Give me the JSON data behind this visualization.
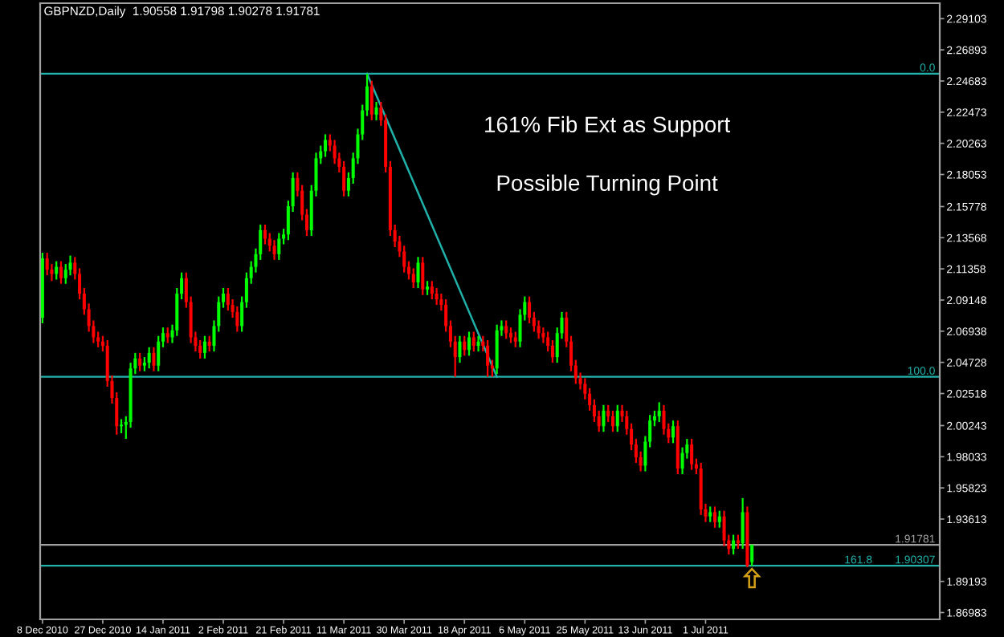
{
  "chart_data": {
    "type": "candlestick",
    "title": "GBPNZD,Daily  1.90558 1.91798 1.90278 1.91781",
    "annotations": [
      "161% Fib Ext as Support",
      "Possible Turning Point",
      {
        "text": "0.0",
        "y": 2.252
      },
      {
        "text": "100.0",
        "y": 2.037
      },
      {
        "text": "1.90307",
        "y": 1.90307
      },
      {
        "text": "161.8",
        "y": 1.90307
      }
    ],
    "categories": [
      "8 Dec 2010",
      null,
      null,
      null,
      null,
      null,
      null,
      null,
      null,
      null,
      null,
      null,
      null,
      "27 Dec 2010",
      null,
      null,
      null,
      null,
      null,
      null,
      null,
      null,
      null,
      null,
      null,
      null,
      "14 Jan 2011",
      null,
      null,
      null,
      null,
      null,
      null,
      null,
      null,
      null,
      null,
      null,
      null,
      "2 Feb 2011",
      null,
      null,
      null,
      null,
      null,
      null,
      null,
      null,
      null,
      null,
      null,
      null,
      "21 Feb 2011",
      null,
      null,
      null,
      null,
      null,
      null,
      null,
      null,
      null,
      null,
      null,
      null,
      "11 Mar 2011",
      null,
      null,
      null,
      null,
      null,
      null,
      null,
      null,
      null,
      null,
      null,
      null,
      "30 Mar 2011",
      null,
      null,
      null,
      null,
      null,
      null,
      null,
      null,
      null,
      null,
      null,
      null,
      "18 Apr 2011",
      null,
      null,
      null,
      null,
      null,
      null,
      null,
      null,
      null,
      null,
      null,
      null,
      "6 May 2011",
      null,
      null,
      null,
      null,
      null,
      null,
      null,
      null,
      null,
      null,
      null,
      null,
      "25 May 2011",
      null,
      null,
      null,
      null,
      null,
      null,
      null,
      null,
      null,
      null,
      null,
      null,
      "13 Jun 2011",
      null,
      null,
      null,
      null,
      null,
      null,
      null,
      null,
      null,
      null,
      null,
      null,
      "1 Jul 2011",
      null,
      null,
      null,
      null,
      null,
      null,
      null,
      null,
      null,
      null,
      null,
      null,
      null,
      null,
      null,
      null,
      null,
      null,
      null,
      null,
      null,
      null,
      null,
      null,
      null,
      null,
      null,
      null,
      null,
      null,
      null,
      null,
      null,
      null,
      null,
      null,
      null,
      null,
      null,
      null,
      null,
      null,
      null,
      null,
      null,
      null,
      null,
      null,
      null,
      null
    ],
    "ohlc": [
      [
        2.079,
        2.125,
        2.075,
        2.121
      ],
      [
        2.121,
        2.125,
        2.109,
        2.113
      ],
      [
        2.113,
        2.117,
        2.105,
        2.11
      ],
      [
        2.11,
        2.119,
        2.106,
        2.115
      ],
      [
        2.115,
        2.119,
        2.103,
        2.107
      ],
      [
        2.107,
        2.117,
        2.103,
        2.113
      ],
      [
        2.113,
        2.123,
        2.109,
        2.118
      ],
      [
        2.118,
        2.122,
        2.106,
        2.11
      ],
      [
        2.11,
        2.114,
        2.092,
        2.096
      ],
      [
        2.096,
        2.1,
        2.081,
        2.085
      ],
      [
        2.085,
        2.089,
        2.069,
        2.073
      ],
      [
        2.073,
        2.077,
        2.061,
        2.065
      ],
      [
        2.065,
        2.069,
        2.058,
        2.062
      ],
      [
        2.062,
        2.066,
        2.055,
        2.059
      ],
      [
        2.059,
        2.063,
        2.03,
        2.034
      ],
      [
        2.034,
        2.038,
        2.018,
        2.022
      ],
      [
        2.022,
        2.026,
        1.996,
        2.002
      ],
      [
        2.002,
        2.007,
        1.997,
        2.003
      ],
      [
        2.003,
        2.009,
        1.993,
        2.005
      ],
      [
        2.005,
        2.047,
        2.001,
        2.043
      ],
      [
        2.043,
        2.054,
        2.039,
        2.05
      ],
      [
        2.05,
        2.054,
        2.041,
        2.045
      ],
      [
        2.045,
        2.051,
        2.041,
        2.047
      ],
      [
        2.047,
        2.058,
        2.043,
        2.054
      ],
      [
        2.054,
        2.058,
        2.041,
        2.045
      ],
      [
        2.045,
        2.066,
        2.041,
        2.062
      ],
      [
        2.062,
        2.072,
        2.058,
        2.068
      ],
      [
        2.068,
        2.072,
        2.061,
        2.065
      ],
      [
        2.065,
        2.074,
        2.061,
        2.07
      ],
      [
        2.07,
        2.1,
        2.066,
        2.096
      ],
      [
        2.096,
        2.111,
        2.092,
        2.107
      ],
      [
        2.107,
        2.111,
        2.086,
        2.09
      ],
      [
        2.09,
        2.094,
        2.061,
        2.065
      ],
      [
        2.065,
        2.069,
        2.055,
        2.059
      ],
      [
        2.059,
        2.063,
        2.05,
        2.054
      ],
      [
        2.054,
        2.066,
        2.05,
        2.062
      ],
      [
        2.062,
        2.066,
        2.055,
        2.059
      ],
      [
        2.059,
        2.077,
        2.055,
        2.073
      ],
      [
        2.073,
        2.094,
        2.069,
        2.09
      ],
      [
        2.09,
        2.1,
        2.086,
        2.096
      ],
      [
        2.096,
        2.1,
        2.084,
        2.088
      ],
      [
        2.088,
        2.092,
        2.079,
        2.083
      ],
      [
        2.083,
        2.087,
        2.069,
        2.073
      ],
      [
        2.073,
        2.094,
        2.069,
        2.09
      ],
      [
        2.09,
        2.111,
        2.086,
        2.107
      ],
      [
        2.107,
        2.119,
        2.103,
        2.115
      ],
      [
        2.115,
        2.128,
        2.111,
        2.124
      ],
      [
        2.124,
        2.145,
        2.12,
        2.141
      ],
      [
        2.141,
        2.145,
        2.131,
        2.135
      ],
      [
        2.135,
        2.139,
        2.126,
        2.13
      ],
      [
        2.13,
        2.134,
        2.12,
        2.124
      ],
      [
        2.124,
        2.139,
        2.12,
        2.135
      ],
      [
        2.135,
        2.142,
        2.131,
        2.138
      ],
      [
        2.138,
        2.162,
        2.134,
        2.158
      ],
      [
        2.158,
        2.182,
        2.154,
        2.178
      ],
      [
        2.178,
        2.182,
        2.165,
        2.169
      ],
      [
        2.169,
        2.173,
        2.148,
        2.152
      ],
      [
        2.152,
        2.156,
        2.137,
        2.141
      ],
      [
        2.141,
        2.173,
        2.137,
        2.169
      ],
      [
        2.169,
        2.196,
        2.165,
        2.192
      ],
      [
        2.192,
        2.201,
        2.188,
        2.197
      ],
      [
        2.197,
        2.209,
        2.193,
        2.205
      ],
      [
        2.205,
        2.209,
        2.197,
        2.201
      ],
      [
        2.201,
        2.205,
        2.188,
        2.192
      ],
      [
        2.192,
        2.196,
        2.182,
        2.186
      ],
      [
        2.186,
        2.19,
        2.165,
        2.169
      ],
      [
        2.169,
        2.182,
        2.165,
        2.178
      ],
      [
        2.178,
        2.196,
        2.174,
        2.192
      ],
      [
        2.192,
        2.213,
        2.188,
        2.209
      ],
      [
        2.209,
        2.23,
        2.205,
        2.226
      ],
      [
        2.226,
        2.252,
        2.222,
        2.243
      ],
      [
        2.243,
        2.247,
        2.219,
        2.223
      ],
      [
        2.223,
        2.232,
        2.219,
        2.228
      ],
      [
        2.228,
        2.232,
        2.215,
        2.219
      ],
      [
        2.219,
        2.223,
        2.182,
        2.186
      ],
      [
        2.186,
        2.19,
        2.137,
        2.141
      ],
      [
        2.141,
        2.145,
        2.129,
        2.133
      ],
      [
        2.133,
        2.137,
        2.122,
        2.126
      ],
      [
        2.126,
        2.13,
        2.111,
        2.115
      ],
      [
        2.115,
        2.119,
        2.106,
        2.11
      ],
      [
        2.11,
        2.114,
        2.1,
        2.104
      ],
      [
        2.104,
        2.122,
        2.1,
        2.118
      ],
      [
        2.118,
        2.122,
        2.095,
        2.099
      ],
      [
        2.099,
        2.105,
        2.095,
        2.101
      ],
      [
        2.101,
        2.105,
        2.092,
        2.096
      ],
      [
        2.096,
        2.1,
        2.088,
        2.092
      ],
      [
        2.092,
        2.096,
        2.084,
        2.088
      ],
      [
        2.088,
        2.092,
        2.069,
        2.073
      ],
      [
        2.073,
        2.077,
        2.058,
        2.062
      ],
      [
        2.062,
        2.066,
        2.037,
        2.051
      ],
      [
        2.051,
        2.066,
        2.047,
        2.062
      ],
      [
        2.062,
        2.066,
        2.052,
        2.056
      ],
      [
        2.056,
        2.069,
        2.052,
        2.065
      ],
      [
        2.065,
        2.069,
        2.055,
        2.059
      ],
      [
        2.059,
        2.066,
        2.055,
        2.062
      ],
      [
        2.062,
        2.066,
        2.055,
        2.059
      ],
      [
        2.059,
        2.063,
        2.037,
        2.045
      ],
      [
        2.045,
        2.049,
        2.037,
        2.043
      ],
      [
        2.043,
        2.074,
        2.039,
        2.07
      ],
      [
        2.07,
        2.077,
        2.066,
        2.073
      ],
      [
        2.073,
        2.077,
        2.064,
        2.068
      ],
      [
        2.068,
        2.072,
        2.061,
        2.065
      ],
      [
        2.065,
        2.069,
        2.058,
        2.062
      ],
      [
        2.062,
        2.085,
        2.058,
        2.081
      ],
      [
        2.081,
        2.094,
        2.077,
        2.09
      ],
      [
        2.09,
        2.094,
        2.075,
        2.079
      ],
      [
        2.079,
        2.083,
        2.069,
        2.073
      ],
      [
        2.073,
        2.077,
        2.064,
        2.068
      ],
      [
        2.068,
        2.072,
        2.061,
        2.065
      ],
      [
        2.065,
        2.069,
        2.055,
        2.059
      ],
      [
        2.059,
        2.063,
        2.047,
        2.051
      ],
      [
        2.051,
        2.072,
        2.047,
        2.068
      ],
      [
        2.068,
        2.083,
        2.064,
        2.079
      ],
      [
        2.079,
        2.083,
        2.058,
        2.062
      ],
      [
        2.062,
        2.066,
        2.041,
        2.045
      ],
      [
        2.045,
        2.049,
        2.032,
        2.036
      ],
      [
        2.036,
        2.04,
        2.028,
        2.032
      ],
      [
        2.032,
        2.036,
        2.021,
        2.025
      ],
      [
        2.025,
        2.029,
        2.013,
        2.017
      ],
      [
        2.017,
        2.021,
        2.005,
        2.009
      ],
      [
        2.009,
        2.013,
        1.998,
        2.002
      ],
      [
        2.002,
        2.017,
        1.998,
        2.013
      ],
      [
        2.013,
        2.017,
        2.005,
        2.009
      ],
      [
        2.009,
        2.013,
        1.998,
        2.002
      ],
      [
        2.002,
        2.017,
        1.998,
        2.013
      ],
      [
        2.013,
        2.017,
        2.005,
        2.009
      ],
      [
        2.009,
        2.013,
        1.996,
        2.0
      ],
      [
        2.0,
        2.004,
        1.985,
        1.989
      ],
      [
        1.989,
        1.993,
        1.976,
        1.98
      ],
      [
        1.98,
        1.984,
        1.97,
        1.974
      ],
      [
        1.974,
        1.995,
        1.97,
        1.991
      ],
      [
        1.991,
        2.01,
        1.987,
        2.006
      ],
      [
        2.006,
        2.013,
        2.002,
        2.009
      ],
      [
        2.009,
        2.019,
        2.005,
        2.013
      ],
      [
        2.013,
        2.017,
        1.996,
        2.0
      ],
      [
        2.0,
        2.004,
        1.99,
        1.994
      ],
      [
        1.994,
        2.006,
        1.99,
        2.002
      ],
      [
        2.002,
        2.006,
        1.968,
        1.972
      ],
      [
        1.972,
        1.987,
        1.968,
        1.983
      ],
      [
        1.983,
        1.993,
        1.979,
        1.989
      ],
      [
        1.989,
        1.993,
        1.971,
        1.975
      ],
      [
        1.975,
        1.979,
        1.968,
        1.972
      ],
      [
        1.972,
        1.976,
        1.939,
        1.943
      ],
      [
        1.943,
        1.947,
        1.934,
        1.938
      ],
      [
        1.938,
        1.945,
        1.934,
        1.941
      ],
      [
        1.941,
        1.945,
        1.93,
        1.934
      ],
      [
        1.934,
        1.942,
        1.93,
        1.938
      ],
      [
        1.938,
        1.942,
        1.917,
        1.921
      ],
      [
        1.921,
        1.925,
        1.911,
        1.915
      ],
      [
        1.915,
        1.925,
        1.911,
        1.921
      ],
      [
        1.921,
        1.925,
        1.915,
        1.919
      ],
      [
        1.919,
        1.951,
        1.915,
        1.941
      ],
      [
        1.941,
        1.945,
        1.902,
        1.903
      ],
      [
        1.90558,
        1.91798,
        1.90278,
        1.91781
      ],
      null,
      null,
      null,
      null,
      null,
      null,
      null,
      null,
      null,
      null,
      null,
      null,
      null,
      null,
      null,
      null,
      null,
      null,
      null,
      null,
      null,
      null,
      null,
      null,
      null,
      null,
      null,
      null,
      null,
      null,
      null,
      null,
      null,
      null,
      null,
      null,
      null,
      null,
      null,
      null
    ],
    "colors": [
      "#00ff00",
      "#ff0000",
      "#ff0000",
      "#00ff00",
      "#ff0000",
      "#00ff00",
      "#00ff00",
      "#ff0000",
      "#ff0000",
      "#ff0000",
      "#ff0000",
      "#ff0000",
      "#ff0000",
      "#ff0000",
      "#ff0000",
      "#ff0000",
      "#ff0000",
      "#00ff00",
      "#00ff00",
      "#00ff00",
      "#00ff00",
      "#ff0000",
      "#00ff00",
      "#00ff00",
      "#ff0000",
      "#00ff00",
      "#00ff00",
      "#ff0000",
      "#00ff00",
      "#00ff00",
      "#00ff00",
      "#ff0000",
      "#ff0000",
      "#ff0000",
      "#ff0000",
      "#00ff00",
      "#ff0000",
      "#00ff00",
      "#00ff00",
      "#00ff00",
      "#ff0000",
      "#ff0000",
      "#ff0000",
      "#00ff00",
      "#00ff00",
      "#00ff00",
      "#00ff00",
      "#00ff00",
      "#ff0000",
      "#ff0000",
      "#ff0000",
      "#00ff00",
      "#00ff00",
      "#00ff00",
      "#00ff00",
      "#ff0000",
      "#ff0000",
      "#ff0000",
      "#00ff00",
      "#00ff00",
      "#00ff00",
      "#00ff00",
      "#ff0000",
      "#ff0000",
      "#ff0000",
      "#ff0000",
      "#00ff00",
      "#00ff00",
      "#00ff00",
      "#00ff00",
      "#00ff00",
      "#ff0000",
      "#00ff00",
      "#ff0000",
      "#ff0000",
      "#ff0000",
      "#ff0000",
      "#ff0000",
      "#ff0000",
      "#ff0000",
      "#ff0000",
      "#00ff00",
      "#ff0000",
      "#00ff00",
      "#ff0000",
      "#ff0000",
      "#ff0000",
      "#ff0000",
      "#ff0000",
      "#ff0000",
      "#00ff00",
      "#ff0000",
      "#00ff00",
      "#ff0000",
      "#00ff00",
      "#ff0000",
      "#ff0000",
      "#ff0000",
      "#00ff00",
      "#00ff00",
      "#ff0000",
      "#ff0000",
      "#ff0000",
      "#00ff00",
      "#00ff00",
      "#ff0000",
      "#ff0000",
      "#ff0000",
      "#ff0000",
      "#ff0000",
      "#ff0000",
      "#00ff00",
      "#00ff00",
      "#ff0000",
      "#ff0000",
      "#ff0000",
      "#ff0000",
      "#ff0000",
      "#ff0000",
      "#ff0000",
      "#ff0000",
      "#00ff00",
      "#ff0000",
      "#ff0000",
      "#00ff00",
      "#ff0000",
      "#ff0000",
      "#ff0000",
      "#ff0000",
      "#ff0000",
      "#00ff00",
      "#00ff00",
      "#00ff00",
      "#00ff00",
      "#ff0000",
      "#ff0000",
      "#00ff00",
      "#ff0000",
      "#00ff00",
      "#00ff00",
      "#ff0000",
      "#ff0000",
      "#ff0000",
      "#ff0000",
      "#00ff00",
      "#ff0000",
      "#00ff00",
      "#ff0000",
      "#ff0000",
      "#00ff00",
      "#ff0000",
      "#00ff00",
      "#ff0000",
      "#00ff00",
      null,
      null,
      null,
      null,
      null,
      null,
      null,
      null,
      null,
      null,
      null,
      null,
      null,
      null,
      null,
      null,
      null,
      null,
      null,
      null,
      null,
      null,
      null,
      null,
      null,
      null,
      null,
      null,
      null,
      null,
      null,
      null,
      null,
      null,
      null,
      null,
      null,
      null,
      null,
      null
    ],
    "series": [
      {
        "type": "line",
        "color": "#20b2aa",
        "values": [
          null,
          null,
          null,
          null,
          null,
          null,
          null,
          null,
          null,
          null,
          null,
          null,
          null,
          null,
          null,
          null,
          null,
          null,
          null,
          null,
          null,
          null,
          null,
          null,
          null,
          null,
          null,
          null,
          null,
          null,
          null,
          null,
          null,
          null,
          null,
          null,
          null,
          null,
          null,
          null,
          null,
          null,
          null,
          null,
          null,
          null,
          null,
          null,
          null,
          null,
          null,
          null,
          null,
          null,
          null,
          null,
          null,
          null,
          null,
          null,
          null,
          null,
          null,
          null,
          null,
          null,
          null,
          null,
          null,
          null,
          2.252,
          null,
          null,
          null,
          null,
          null,
          null,
          null,
          null,
          null,
          null,
          null,
          null,
          null,
          null,
          null,
          null,
          null,
          null,
          null,
          null,
          null,
          null,
          null,
          null,
          null,
          null,
          null,
          2.037,
          null,
          null,
          null,
          null,
          null,
          null,
          null,
          null,
          null,
          null,
          null,
          null,
          null,
          null,
          null,
          null,
          null,
          null,
          null,
          null,
          null,
          null,
          null,
          null,
          null,
          null,
          null,
          null,
          null,
          null,
          null,
          null,
          null,
          null,
          null,
          null,
          null,
          null,
          null,
          null,
          null,
          null,
          null,
          null,
          null,
          null,
          null,
          null,
          null,
          null,
          null,
          null,
          null,
          null,
          null,
          null,
          null,
          null,
          null,
          null,
          null,
          null,
          null,
          null,
          null,
          null,
          null,
          null,
          null,
          null,
          null,
          null,
          null,
          null,
          null,
          null,
          null,
          null,
          null,
          null,
          null,
          null,
          null,
          null,
          null,
          null,
          null,
          null,
          null,
          null,
          null,
          null,
          null,
          null,
          null
        ]
      }
    ],
    "ylim": [
      1.865,
      2.302
    ],
    "yticks": [
      2.29103,
      2.26893,
      2.24683,
      2.22473,
      2.20263,
      2.18053,
      2.15778,
      2.13568,
      2.11358,
      2.09148,
      2.06938,
      2.04728,
      2.02518,
      2.00243,
      1.98033,
      1.95823,
      1.93613,
      1.89193,
      1.86983
    ],
    "ref_lines": [
      {
        "axis": "y",
        "value": 2.252,
        "color": "#20b2aa"
      },
      {
        "axis": "y",
        "value": 2.037,
        "color": "#20b2aa"
      },
      {
        "axis": "y",
        "value": 1.90307,
        "color": "#20b2aa"
      },
      {
        "axis": "y",
        "value": 1.91781,
        "label": "1.91781",
        "color": "#a0a0a0"
      }
    ]
  }
}
